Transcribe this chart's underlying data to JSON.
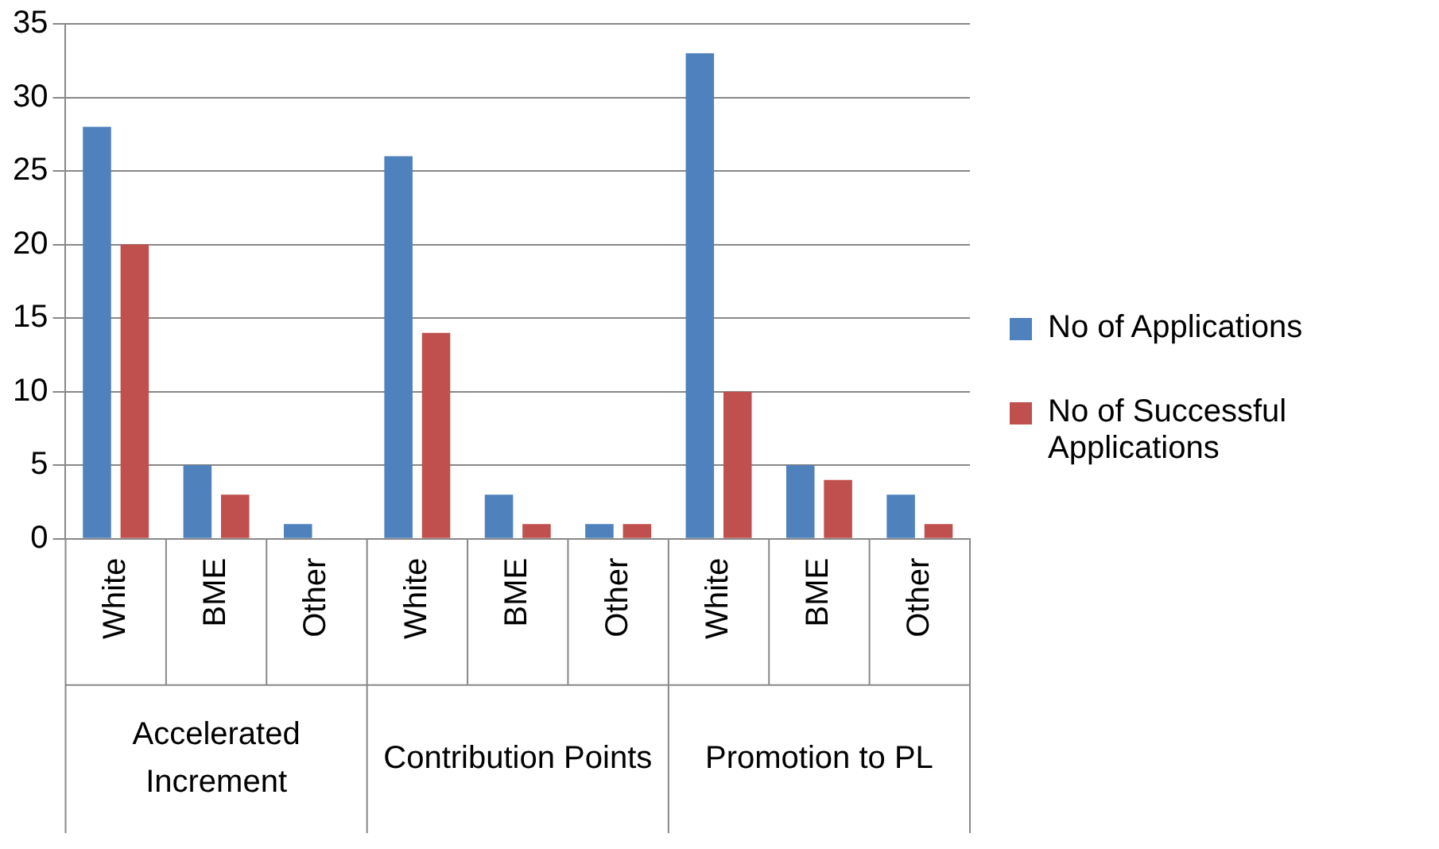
{
  "chart_data": {
    "type": "bar",
    "categories": [
      "White",
      "BME",
      "Other",
      "White",
      "BME",
      "Other",
      "White",
      "BME",
      "Other"
    ],
    "series": [
      {
        "name": "No of Applications",
        "color": "#4f81bd",
        "values": [
          28,
          5,
          1,
          26,
          3,
          1,
          33,
          5,
          3
        ]
      },
      {
        "name": "No of Successful Applications",
        "color": "#c0504d",
        "values": [
          20,
          3,
          0,
          14,
          1,
          1,
          10,
          4,
          1
        ]
      }
    ],
    "ylim": [
      0,
      35
    ],
    "yticks": [
      0,
      5,
      10,
      15,
      20,
      25,
      30,
      35
    ],
    "grid": "y",
    "legend": "right",
    "annotations": [
      "Accelerated Increment",
      "Contribution Points",
      "Promotion to PL"
    ]
  }
}
